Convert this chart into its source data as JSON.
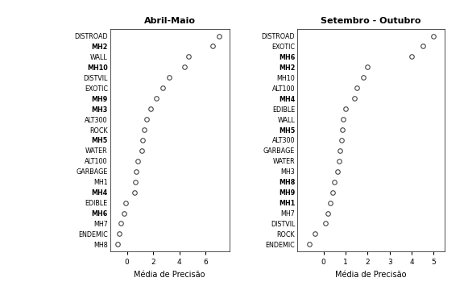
{
  "abril_labels": [
    "DISTROAD",
    "MH2",
    "WALL",
    "MH10",
    "DISTVIL",
    "EXOTIC",
    "MH9",
    "MH3",
    "ALT300",
    "ROCK",
    "MH5",
    "WATER",
    "ALT100",
    "GARBAGE",
    "MH1",
    "MH4",
    "EDIBLE",
    "MH6",
    "MH7",
    "ENDEMIC",
    "MH8"
  ],
  "abril_values": [
    7.0,
    6.5,
    4.7,
    4.4,
    3.2,
    2.7,
    2.2,
    1.8,
    1.5,
    1.3,
    1.2,
    1.1,
    0.8,
    0.7,
    0.65,
    0.55,
    -0.1,
    -0.25,
    -0.5,
    -0.6,
    -0.72
  ],
  "abril_bold": [
    "MH2",
    "MH10",
    "MH9",
    "MH3",
    "MH5",
    "MH4",
    "MH6"
  ],
  "abril_title": "Abril-Maio",
  "abril_xlim": [
    -1.3,
    7.8
  ],
  "abril_xticks": [
    0,
    2,
    4,
    6
  ],
  "set_labels": [
    "DISTROAD",
    "EXOTIC",
    "MH6",
    "MH2",
    "MH10",
    "ALT100",
    "MH4",
    "EDIBLE",
    "WALL",
    "MH5",
    "ALT300",
    "GARBAGE",
    "WATER",
    "MH3",
    "MH8",
    "MH9",
    "MH1",
    "MH7",
    "DISTVIL",
    "ROCK",
    "ENDEMIC"
  ],
  "set_values": [
    5.0,
    4.5,
    4.0,
    2.0,
    1.8,
    1.5,
    1.4,
    1.0,
    0.9,
    0.85,
    0.8,
    0.75,
    0.7,
    0.65,
    0.5,
    0.4,
    0.3,
    0.2,
    0.1,
    -0.4,
    -0.65
  ],
  "set_bold": [
    "MH6",
    "MH2",
    "MH4",
    "MH5",
    "MH8",
    "MH9",
    "MH1"
  ],
  "set_title": "Setembro - Outubro",
  "set_xlim": [
    -1.2,
    5.5
  ],
  "set_xticks": [
    0,
    1,
    2,
    3,
    4,
    5
  ],
  "xlabel": "Média de Precisão",
  "bg_color": "#ffffff",
  "marker_edge": "#444444",
  "label_fontsize": 5.8,
  "title_fontsize": 8,
  "xlabel_fontsize": 7.0,
  "xtick_fontsize": 6.5,
  "marker_size": 4.0,
  "marker_edge_width": 0.8
}
